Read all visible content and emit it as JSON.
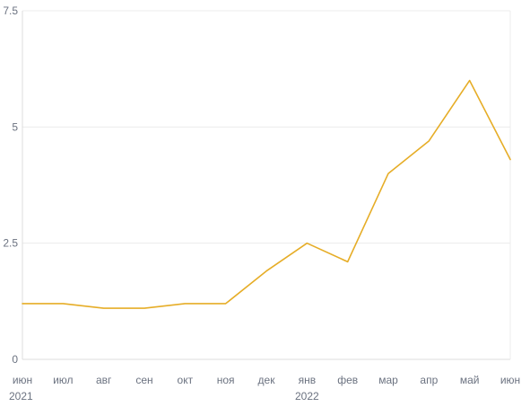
{
  "chart_data": {
    "type": "line",
    "categories": [
      "июн",
      "июл",
      "авг",
      "сен",
      "окт",
      "ноя",
      "дек",
      "янв",
      "фев",
      "мар",
      "апр",
      "май",
      "июн"
    ],
    "year_labels": [
      {
        "index": 0,
        "label": "2021"
      },
      {
        "index": 7,
        "label": "2022"
      }
    ],
    "series": [
      {
        "values": [
          1.2,
          1.2,
          1.1,
          1.1,
          1.2,
          1.2,
          1.9,
          2.5,
          2.1,
          4.0,
          4.7,
          6.0,
          4.3
        ]
      }
    ],
    "yticks": [
      "0",
      "2.5",
      "5",
      "7.5"
    ],
    "ytick_values": [
      0,
      2.5,
      5,
      7.5
    ],
    "ylim": [
      0,
      7.5
    ],
    "grid": true,
    "legend": "none",
    "colors": {
      "line": "#e6ad27",
      "grid": "#ececec",
      "text": "#6b7280"
    }
  }
}
